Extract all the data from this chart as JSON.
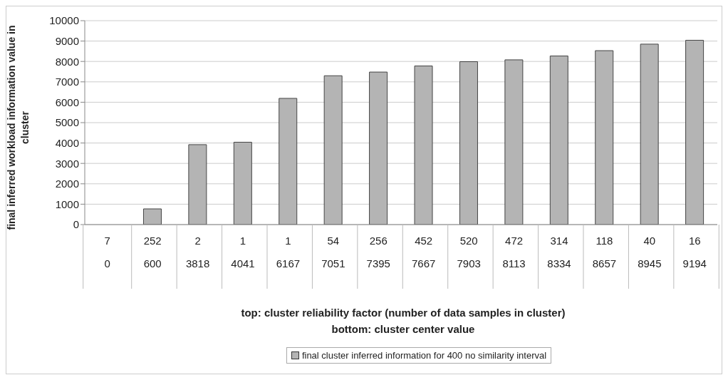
{
  "chart_data": {
    "type": "bar",
    "ylabel": "final inferred workload information value in cluster",
    "xlabel": "top: cluster reliability factor (number of data samples in cluster)\nbottom: cluster center value",
    "categories": [
      "7\n0",
      "252\n600",
      "2\n3818",
      "1\n4041",
      "1\n6167",
      "54\n7051",
      "256\n7395",
      "452\n7667",
      "520\n7903",
      "472\n8113",
      "314\n8334",
      "118\n8657",
      "40\n8945",
      "16\n9194"
    ],
    "series": [
      {
        "name": "final cluster inferred information for 400 no similarity interval",
        "color": "#b4b4b4",
        "values": [
          0,
          770,
          3920,
          4040,
          6190,
          7300,
          7480,
          7780,
          7990,
          8080,
          8270,
          8530,
          8850,
          9040
        ]
      }
    ],
    "ylim": [
      0,
      10000
    ],
    "yticks": [
      0,
      1000,
      2000,
      3000,
      4000,
      5000,
      6000,
      7000,
      8000,
      9000,
      10000
    ],
    "grid": "y",
    "legend": "bottom"
  }
}
